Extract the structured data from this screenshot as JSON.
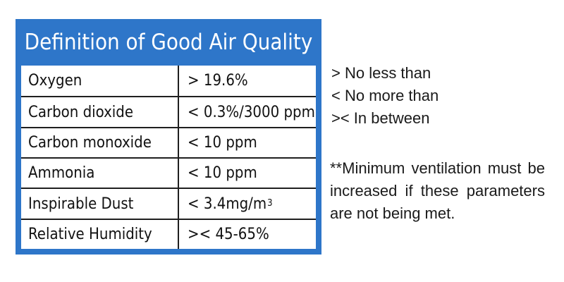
{
  "table": {
    "title": "Definition of Good Air Quality",
    "rows": [
      {
        "parameter": "Oxygen",
        "value": "> 19.6%"
      },
      {
        "parameter": "Carbon dioxide",
        "value": "< 0.3%/3000 ppm"
      },
      {
        "parameter": "Carbon monoxide",
        "value": "< 10 ppm"
      },
      {
        "parameter": "Ammonia",
        "value": "< 10 ppm"
      },
      {
        "parameter": "Inspirable Dust",
        "value": "< 3.4mg/m",
        "value_superscript": "3"
      },
      {
        "parameter": "Relative Humidity",
        "value": ">< 45-65%"
      }
    ]
  },
  "legend": [
    "> No less than",
    "< No more than",
    ">< In between"
  ],
  "note": "**Minimum ventilation must be increased if these parameters are not being met.",
  "colors": {
    "header_background": "#2e76c9",
    "header_text": "#ffffff",
    "table_text": "#111111",
    "border": "#1f1f1f"
  }
}
